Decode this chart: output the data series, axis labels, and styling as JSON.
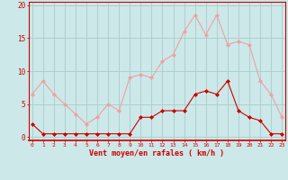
{
  "hours": [
    0,
    1,
    2,
    3,
    4,
    5,
    6,
    7,
    8,
    9,
    10,
    11,
    12,
    13,
    14,
    15,
    16,
    17,
    18,
    19,
    20,
    21,
    22,
    23
  ],
  "rafales": [
    6.5,
    8.5,
    6.5,
    5.0,
    3.5,
    2.0,
    3.0,
    5.0,
    4.0,
    9.0,
    9.5,
    9.0,
    11.5,
    12.5,
    16.0,
    18.5,
    15.5,
    18.5,
    14.0,
    14.5,
    14.0,
    8.5,
    6.5,
    3.0
  ],
  "moyen": [
    2.0,
    0.5,
    0.5,
    0.5,
    0.5,
    0.5,
    0.5,
    0.5,
    0.5,
    0.5,
    3.0,
    3.0,
    4.0,
    4.0,
    4.0,
    6.5,
    7.0,
    6.5,
    8.5,
    4.0,
    3.0,
    2.5,
    0.5,
    0.5
  ],
  "line_color_rafales": "#f0a0a0",
  "line_color_moyen": "#cc0000",
  "bg_color": "#cce8e8",
  "grid_color": "#aacccc",
  "xlabel": "Vent moyen/en rafales ( km/h )",
  "xlabel_color": "#cc0000",
  "tick_color": "#cc0000",
  "spine_color": "#cc0000",
  "ylim": [
    0,
    20
  ],
  "yticks": [
    0,
    5,
    10,
    15,
    20
  ],
  "xlim": [
    0,
    23
  ]
}
